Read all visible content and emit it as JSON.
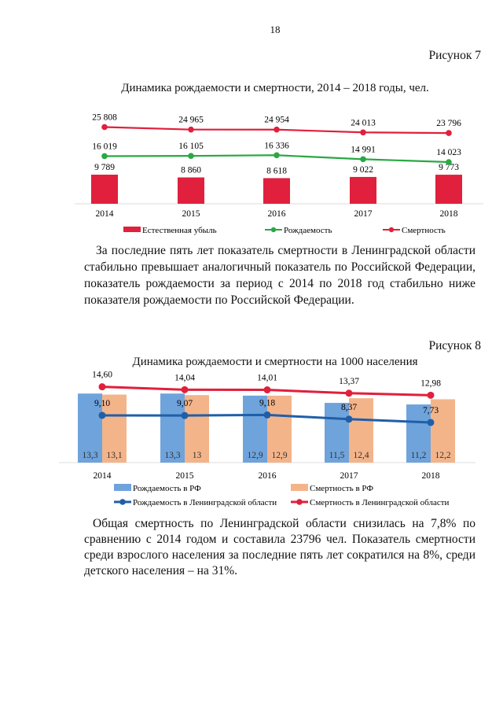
{
  "page_number": "18",
  "figure7": {
    "label": "Рисунок 7",
    "title": "Динамика рождаемости и смертности, 2014 – 2018 годы, чел."
  },
  "paragraph1": "За последние пять лет показатель смертности в Ленинградской области стабильно превышает аналогичный показатель по Российской Федерации, показатель рождаемости за период с 2014 по 2018 год стабильно ниже показателя рождаемости по Российской Федерации.",
  "figure8": {
    "label": "Рисунок 8",
    "title": "Динамика рождаемости и смертности на 1000 населения"
  },
  "paragraph2": "Общая смертность по Ленинградской области снизилась на 7,8% по сравнению с 2014 годом и составила 23796 чел. Показатель смертности среди взрослого населения за последние пять лет сократился на 8%, среди детского населения – на 31%.",
  "chart_data": [
    {
      "type": "bar+line",
      "title": "Динамика рождаемости и смертности, 2014 – 2018 годы, чел.",
      "categories": [
        "2014",
        "2015",
        "2016",
        "2017",
        "2018"
      ],
      "legend_position": "bottom",
      "grid": false,
      "series": [
        {
          "name": "Естественная убыль",
          "kind": "bar",
          "color": "#e0203c",
          "values": [
            9789,
            8860,
            8618,
            9022,
            9773
          ],
          "labels": [
            "9 789",
            "8 860",
            "8 618",
            "9 022",
            "9 773"
          ]
        },
        {
          "name": "Рождаемость",
          "kind": "line",
          "color": "#2aa843",
          "values": [
            16019,
            16105,
            16336,
            14991,
            14023
          ],
          "labels": [
            "16 019",
            "16 105",
            "16 336",
            "14 991",
            "14 023"
          ]
        },
        {
          "name": "Смертность",
          "kind": "line",
          "color": "#e0203c",
          "values": [
            25808,
            24965,
            24954,
            24013,
            23796
          ],
          "labels": [
            "25 808",
            "24 965",
            "24 954",
            "24 013",
            "23 796"
          ]
        }
      ]
    },
    {
      "type": "bar+line",
      "title": "Динамика рождаемости и смертности на 1000 населения",
      "categories": [
        "2014",
        "2015",
        "2016",
        "2017",
        "2018"
      ],
      "legend_position": "bottom",
      "grid": false,
      "series": [
        {
          "name": "Рождаемость в РФ",
          "kind": "bar",
          "color": "#6fa3dc",
          "values": [
            13.3,
            13.3,
            12.9,
            11.5,
            11.2
          ],
          "labels": [
            "13,3",
            "13,3",
            "12,9",
            "11,5",
            "11,2"
          ]
        },
        {
          "name": "Смертность в РФ",
          "kind": "bar",
          "color": "#f4b48a",
          "values": [
            13.1,
            13,
            12.9,
            12.4,
            12.2
          ],
          "labels": [
            "13,1",
            "13",
            "12,9",
            "12,4",
            "12,2"
          ]
        },
        {
          "name": "Рождаемость в Ленинградской области",
          "kind": "line",
          "color": "#1f5fa8",
          "values": [
            9.1,
            9.07,
            9.18,
            8.37,
            7.73
          ],
          "labels": [
            "9,10",
            "9,07",
            "9,18",
            "8,37",
            "7,73"
          ]
        },
        {
          "name": "Смертность в Ленинградской области",
          "kind": "line",
          "color": "#e0203c",
          "values": [
            14.6,
            14.04,
            14.01,
            13.37,
            12.98
          ],
          "labels": [
            "14,60",
            "14,04",
            "14,01",
            "13,37",
            "12,98"
          ]
        }
      ]
    }
  ]
}
